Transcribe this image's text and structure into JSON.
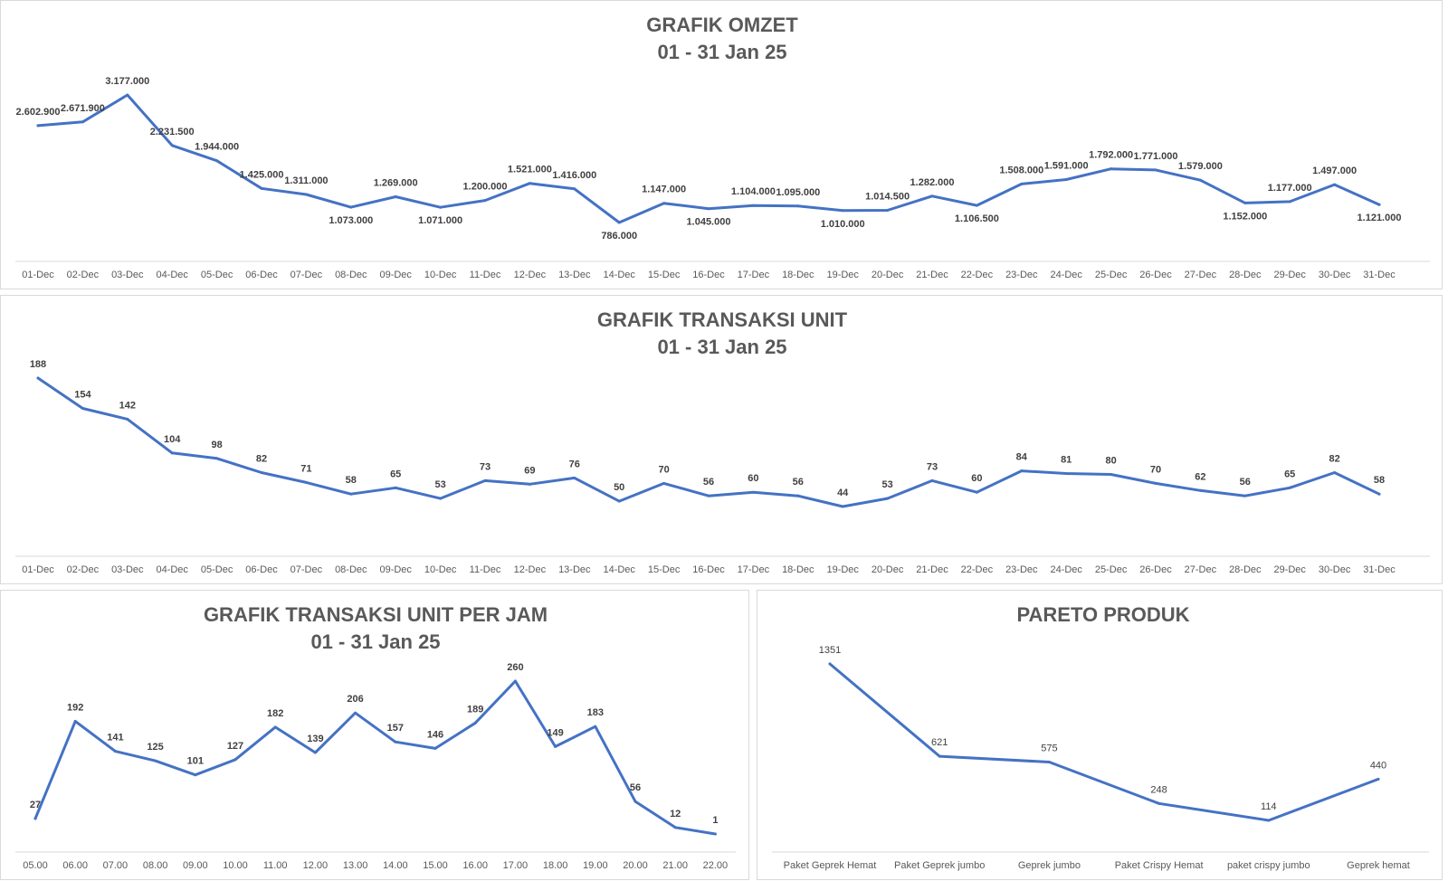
{
  "colors": {
    "line": "#4472c4"
  },
  "chart_data": [
    {
      "id": "omzet",
      "type": "line",
      "title": "GRAFIK OMZET",
      "subtitle": "01 - 31 Jan 25",
      "categories": [
        "01-Dec",
        "02-Dec",
        "03-Dec",
        "04-Dec",
        "05-Dec",
        "06-Dec",
        "07-Dec",
        "08-Dec",
        "09-Dec",
        "10-Dec",
        "11-Dec",
        "12-Dec",
        "13-Dec",
        "14-Dec",
        "15-Dec",
        "16-Dec",
        "17-Dec",
        "18-Dec",
        "19-Dec",
        "20-Dec",
        "21-Dec",
        "22-Dec",
        "23-Dec",
        "24-Dec",
        "25-Dec",
        "26-Dec",
        "27-Dec",
        "28-Dec",
        "29-Dec",
        "30-Dec",
        "31-Dec"
      ],
      "values": [
        2602900,
        2671900,
        3177000,
        2231500,
        1944000,
        1425000,
        1311000,
        1073000,
        1269000,
        1071000,
        1200000,
        1521000,
        1416000,
        786000,
        1147000,
        1045000,
        1104000,
        1095000,
        1010000,
        1014500,
        1282000,
        1106500,
        1508000,
        1591000,
        1792000,
        1771000,
        1579000,
        1152000,
        1177000,
        1497000,
        1121000
      ],
      "labels": [
        "2.602.900",
        "2.671.900",
        "3.177.000",
        "2.231.500",
        "1.944.000",
        "1.425.000",
        "1.311.000",
        "1.073.000",
        "1.269.000",
        "1.071.000",
        "1.200.000",
        "1.521.000",
        "1.416.000",
        "786.000",
        "1.147.000",
        "1.045.000",
        "1.104.000",
        "1.095.000",
        "1.010.000",
        "1.014.500",
        "1.282.000",
        "1.106.500",
        "1.508.000",
        "1.591.000",
        "1.792.000",
        "1.771.000",
        "1.579.000",
        "1.152.000",
        "1.177.000",
        "1.497.000",
        "1.121.000"
      ],
      "ylim": [
        0,
        3500000
      ],
      "xlabel": "",
      "ylabel": "",
      "legend": "none"
    },
    {
      "id": "unit",
      "type": "line",
      "title": "GRAFIK TRANSAKSI UNIT",
      "subtitle": "01 - 31 Jan 25",
      "categories": [
        "01-Dec",
        "02-Dec",
        "03-Dec",
        "04-Dec",
        "05-Dec",
        "06-Dec",
        "07-Dec",
        "08-Dec",
        "09-Dec",
        "10-Dec",
        "11-Dec",
        "12-Dec",
        "13-Dec",
        "14-Dec",
        "15-Dec",
        "16-Dec",
        "17-Dec",
        "18-Dec",
        "19-Dec",
        "20-Dec",
        "21-Dec",
        "22-Dec",
        "23-Dec",
        "24-Dec",
        "25-Dec",
        "26-Dec",
        "27-Dec",
        "28-Dec",
        "29-Dec",
        "30-Dec",
        "31-Dec"
      ],
      "values": [
        188,
        154,
        142,
        104,
        98,
        82,
        71,
        58,
        65,
        53,
        73,
        69,
        76,
        50,
        70,
        56,
        60,
        56,
        44,
        53,
        73,
        60,
        84,
        81,
        80,
        70,
        62,
        56,
        65,
        82,
        58
      ],
      "labels": [
        "188",
        "154",
        "142",
        "104",
        "98",
        "82",
        "71",
        "58",
        "65",
        "53",
        "73",
        "69",
        "76",
        "50",
        "70",
        "56",
        "60",
        "56",
        "44",
        "53",
        "73",
        "60",
        "84",
        "81",
        "80",
        "70",
        "62",
        "56",
        "65",
        "82",
        "58"
      ],
      "ylim": [
        0,
        200
      ],
      "xlabel": "",
      "ylabel": "",
      "legend": "none"
    },
    {
      "id": "perjam",
      "type": "line",
      "title": "GRAFIK TRANSAKSI UNIT PER JAM",
      "subtitle": "01 - 31 Jan 25",
      "categories": [
        "05.00",
        "06.00",
        "07.00",
        "08.00",
        "09.00",
        "10.00",
        "11.00",
        "12.00",
        "13.00",
        "14.00",
        "15.00",
        "16.00",
        "17.00",
        "18.00",
        "19.00",
        "20.00",
        "21.00",
        "22.00"
      ],
      "values": [
        27,
        192,
        141,
        125,
        101,
        127,
        182,
        139,
        206,
        157,
        146,
        189,
        260,
        149,
        183,
        56,
        12,
        1
      ],
      "labels": [
        "27",
        "192",
        "141",
        "125",
        "101",
        "127",
        "182",
        "139",
        "206",
        "157",
        "146",
        "189",
        "260",
        "149",
        "183",
        "56",
        "12",
        "1"
      ],
      "ylim": [
        0,
        300
      ],
      "xlabel": "",
      "ylabel": "",
      "legend": "none"
    },
    {
      "id": "pareto",
      "type": "line",
      "title": "PARETO PRODUK",
      "subtitle": "",
      "categories": [
        "Paket Geprek Hemat",
        "Paket Geprek jumbo",
        "Geprek jumbo",
        "Paket Crispy Hemat",
        "paket crispy jumbo",
        "Geprek hemat"
      ],
      "values": [
        1351,
        621,
        575,
        248,
        114,
        440
      ],
      "labels": [
        "1351",
        "621",
        "575",
        "248",
        "114",
        "440"
      ],
      "ylim": [
        0,
        1600
      ],
      "xlabel": "",
      "ylabel": "",
      "legend": "none"
    }
  ]
}
